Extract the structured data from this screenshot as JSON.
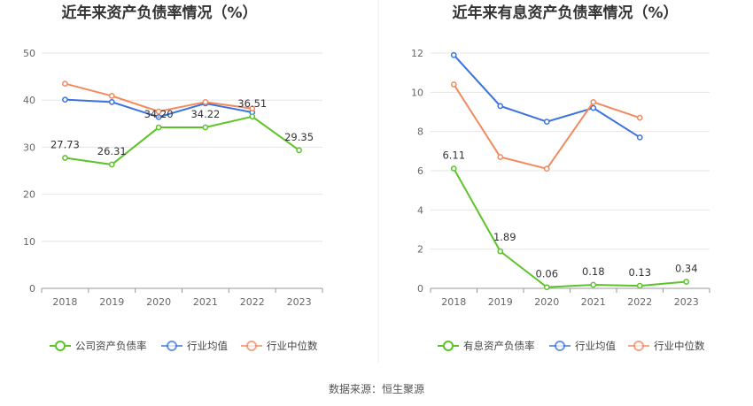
{
  "chart_data": [
    {
      "type": "line",
      "title": "近年来资产负债率情况（%）",
      "categories": [
        "2018",
        "2019",
        "2020",
        "2021",
        "2022",
        "2023"
      ],
      "ylim": [
        0,
        50
      ],
      "yticks": [
        0,
        10,
        20,
        30,
        40,
        50
      ],
      "grid": true,
      "legend_position": "bottom",
      "series": [
        {
          "name": "公司资产负债率",
          "color": "#5cc328",
          "values": [
            27.73,
            26.31,
            34.2,
            34.22,
            36.51,
            29.35
          ],
          "data_labels": [
            "27.73",
            "26.31",
            "34.20",
            "34.22",
            "36.51",
            "29.35"
          ]
        },
        {
          "name": "行业均值",
          "color": "#3b73de",
          "values": [
            40.1,
            39.6,
            36.4,
            39.3,
            37.4,
            null
          ]
        },
        {
          "name": "行业中位数",
          "color": "#f3895e",
          "values": [
            43.5,
            40.9,
            37.6,
            39.6,
            38.2,
            null
          ]
        }
      ]
    },
    {
      "type": "line",
      "title": "近年来有息资产负债率情况（%）",
      "categories": [
        "2018",
        "2019",
        "2020",
        "2021",
        "2022",
        "2023"
      ],
      "ylim": [
        0,
        12
      ],
      "yticks": [
        0,
        2,
        4,
        6,
        8,
        10,
        12
      ],
      "grid": true,
      "legend_position": "bottom",
      "series": [
        {
          "name": "有息资产负债率",
          "color": "#5cc328",
          "values": [
            6.11,
            1.89,
            0.06,
            0.18,
            0.13,
            0.34
          ],
          "data_labels": [
            "6.11",
            "1.89",
            "0.06",
            "0.18",
            "0.13",
            "0.34"
          ]
        },
        {
          "name": "行业均值",
          "color": "#3b73de",
          "values": [
            11.9,
            9.3,
            8.5,
            9.2,
            7.7,
            null
          ]
        },
        {
          "name": "行业中位数",
          "color": "#f3895e",
          "values": [
            10.4,
            6.7,
            6.1,
            9.5,
            8.7,
            null
          ]
        }
      ]
    }
  ],
  "footer": {
    "source": "数据来源：恒生聚源"
  }
}
